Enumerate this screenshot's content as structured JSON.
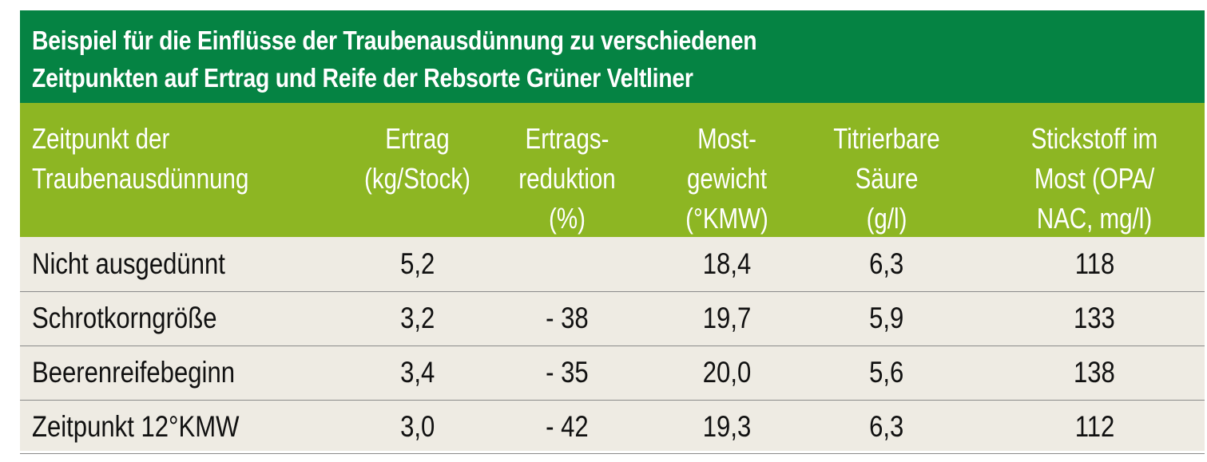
{
  "title": {
    "line1": "Beispiel für die Einflüsse der Traubenausdünnung zu verschiedenen",
    "line2": "Zeitpunkten auf Ertrag und Reife der Rebsorte Grüner Veltliner"
  },
  "colors": {
    "title_bg": "#058343",
    "header_bg": "#8db623",
    "body_bg": "#eeebe3"
  },
  "columns": [
    {
      "lines": [
        "Zeitpunkt der",
        "Traubenausdünnung"
      ]
    },
    {
      "lines": [
        "Ertrag",
        "(kg/Stock)"
      ]
    },
    {
      "lines": [
        "Ertrags-",
        "reduktion",
        "(%)"
      ]
    },
    {
      "lines": [
        "Most-",
        "gewicht",
        "(°KMW)"
      ]
    },
    {
      "lines": [
        "Titrierbare",
        "Säure",
        "(g/l)"
      ]
    },
    {
      "lines": [
        "Stickstoff im",
        "Most (OPA/",
        "NAC, mg/l)"
      ]
    }
  ],
  "rows": [
    {
      "cells": [
        "Nicht ausgedünnt",
        "5,2",
        "",
        "18,4",
        "6,3",
        "118"
      ]
    },
    {
      "cells": [
        "Schrotkorngröße",
        "3,2",
        "- 38",
        "19,7",
        "5,9",
        "133"
      ]
    },
    {
      "cells": [
        "Beerenreifebeginn",
        "3,4",
        "- 35",
        "20,0",
        "5,6",
        "138"
      ]
    },
    {
      "cells": [
        "Zeitpunkt 12°KMW",
        "3,0",
        "- 42",
        "19,3",
        "6,3",
        "112"
      ]
    }
  ]
}
